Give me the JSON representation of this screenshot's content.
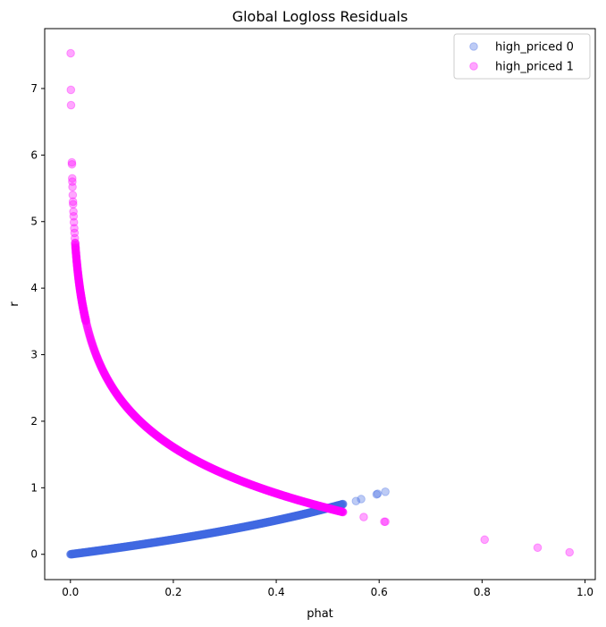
{
  "chart_data": {
    "type": "scatter",
    "title": "Global Logloss Residuals",
    "xlabel": "phat",
    "ylabel": "r",
    "xlim": [
      -0.05,
      1.02
    ],
    "ylim": [
      -0.38,
      7.9
    ],
    "xticks": [
      "0.0",
      "0.2",
      "0.4",
      "0.6",
      "0.8",
      "1.0"
    ],
    "xtick_values": [
      0.0,
      0.2,
      0.4,
      0.6,
      0.8,
      1.0
    ],
    "yticks": [
      "0",
      "1",
      "2",
      "3",
      "4",
      "5",
      "6",
      "7"
    ],
    "ytick_values": [
      0,
      1,
      2,
      3,
      4,
      5,
      6,
      7
    ],
    "grid": false,
    "legend_position": "top-right",
    "series": [
      {
        "name": "high_priced 0",
        "color": "#4169E1",
        "alpha": 0.35,
        "curve": "r = -ln(1 - phat)",
        "curve_range": [
          0.0,
          0.53
        ],
        "points": [
          {
            "x": 0.555,
            "y": 0.8
          },
          {
            "x": 0.565,
            "y": 0.83
          },
          {
            "x": 0.595,
            "y": 0.9
          },
          {
            "x": 0.597,
            "y": 0.91
          },
          {
            "x": 0.612,
            "y": 0.94
          }
        ]
      },
      {
        "name": "high_priced 1",
        "color": "#FF00FF",
        "alpha": 0.35,
        "curve": "r = -ln(phat)",
        "curve_range": [
          0.01,
          0.53
        ],
        "points": [
          {
            "x": 0.0005,
            "y": 7.53
          },
          {
            "x": 0.0009,
            "y": 6.98
          },
          {
            "x": 0.0012,
            "y": 6.75
          },
          {
            "x": 0.0028,
            "y": 5.89
          },
          {
            "x": 0.003,
            "y": 5.86
          },
          {
            "x": 0.0035,
            "y": 5.65
          },
          {
            "x": 0.0037,
            "y": 5.6
          },
          {
            "x": 0.004,
            "y": 5.52
          },
          {
            "x": 0.0045,
            "y": 5.4
          },
          {
            "x": 0.005,
            "y": 5.3
          },
          {
            "x": 0.0052,
            "y": 5.26
          },
          {
            "x": 0.0058,
            "y": 5.15
          },
          {
            "x": 0.0062,
            "y": 5.08
          },
          {
            "x": 0.0068,
            "y": 4.99
          },
          {
            "x": 0.0074,
            "y": 4.9
          },
          {
            "x": 0.008,
            "y": 4.83
          },
          {
            "x": 0.0086,
            "y": 4.75
          },
          {
            "x": 0.0093,
            "y": 4.68
          },
          {
            "x": 0.57,
            "y": 0.56
          },
          {
            "x": 0.61,
            "y": 0.49
          },
          {
            "x": 0.612,
            "y": 0.49
          },
          {
            "x": 0.805,
            "y": 0.22
          },
          {
            "x": 0.908,
            "y": 0.1
          },
          {
            "x": 0.97,
            "y": 0.03
          }
        ]
      }
    ]
  }
}
